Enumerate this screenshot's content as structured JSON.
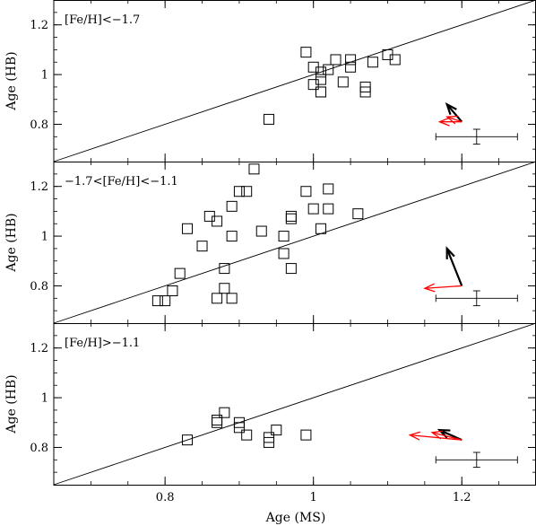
{
  "chart_data": {
    "type": "scatter",
    "x_axis": {
      "label": "Age (MS)",
      "range": [
        0.65,
        1.3
      ],
      "ticks": [
        0.8,
        1,
        1.2
      ],
      "tick_labels": [
        "0.8",
        "1",
        "1.2"
      ]
    },
    "y_axis": {
      "label": "Age (HB)",
      "range": [
        0.65,
        1.3
      ],
      "ticks": [
        0.8,
        1,
        1.2
      ],
      "tick_labels": [
        "0.8",
        "1",
        "1.2"
      ]
    },
    "colors": {
      "black": "#000000",
      "red": "#ff0000"
    },
    "panels": [
      {
        "label": "[Fe/H]<−1.7",
        "points": [
          [
            0.94,
            0.82
          ],
          [
            0.99,
            1.09
          ],
          [
            1.0,
            1.03
          ],
          [
            1.0,
            0.96
          ],
          [
            1.01,
            1.01
          ],
          [
            1.01,
            0.98
          ],
          [
            1.01,
            0.93
          ],
          [
            1.01,
            0.93
          ],
          [
            1.02,
            1.02
          ],
          [
            1.03,
            1.06
          ],
          [
            1.04,
            0.97
          ],
          [
            1.05,
            1.06
          ],
          [
            1.05,
            1.03
          ],
          [
            1.07,
            0.95
          ],
          [
            1.07,
            0.93
          ],
          [
            1.08,
            1.05
          ],
          [
            1.1,
            1.08
          ],
          [
            1.11,
            1.06
          ]
        ],
        "arrows": [
          {
            "color": "black",
            "from": [
              1.2,
              0.81
            ],
            "to": [
              1.18,
              0.88
            ]
          },
          {
            "color": "red",
            "from": [
              1.2,
              0.81
            ],
            "to": [
              1.17,
              0.81
            ]
          },
          {
            "color": "red",
            "from": [
              1.2,
              0.81
            ],
            "to": [
              1.18,
              0.83
            ]
          }
        ],
        "error_bar": {
          "x": 1.22,
          "y": 0.75,
          "x_err": 0.055,
          "y_err": 0.03
        }
      },
      {
        "label": "−1.7<[Fe/H]<−1.1",
        "points": [
          [
            0.79,
            0.74
          ],
          [
            0.8,
            0.74
          ],
          [
            0.81,
            0.78
          ],
          [
            0.82,
            0.85
          ],
          [
            0.83,
            1.03
          ],
          [
            0.85,
            0.96
          ],
          [
            0.86,
            1.08
          ],
          [
            0.87,
            1.06
          ],
          [
            0.87,
            0.75
          ],
          [
            0.88,
            0.87
          ],
          [
            0.88,
            0.79
          ],
          [
            0.89,
            1.12
          ],
          [
            0.89,
            1.0
          ],
          [
            0.89,
            0.75
          ],
          [
            0.9,
            1.18
          ],
          [
            0.91,
            1.18
          ],
          [
            0.92,
            1.27
          ],
          [
            0.93,
            1.02
          ],
          [
            0.96,
            1.0
          ],
          [
            0.96,
            0.93
          ],
          [
            0.97,
            1.07
          ],
          [
            0.97,
            1.08
          ],
          [
            0.97,
            0.87
          ],
          [
            0.99,
            1.18
          ],
          [
            1.0,
            1.11
          ],
          [
            1.01,
            1.03
          ],
          [
            1.02,
            1.19
          ],
          [
            1.02,
            1.11
          ],
          [
            1.06,
            1.09
          ]
        ],
        "arrows": [
          {
            "color": "black",
            "from": [
              1.2,
              0.8
            ],
            "to": [
              1.18,
              0.95
            ]
          },
          {
            "color": "red",
            "from": [
              1.2,
              0.8
            ],
            "to": [
              1.15,
              0.79
            ]
          }
        ],
        "error_bar": {
          "x": 1.22,
          "y": 0.75,
          "x_err": 0.055,
          "y_err": 0.03
        }
      },
      {
        "label": "[Fe/H]>−1.1",
        "points": [
          [
            0.83,
            0.83
          ],
          [
            0.87,
            0.91
          ],
          [
            0.87,
            0.9
          ],
          [
            0.88,
            0.94
          ],
          [
            0.9,
            0.9
          ],
          [
            0.9,
            0.88
          ],
          [
            0.91,
            0.85
          ],
          [
            0.94,
            0.84
          ],
          [
            0.94,
            0.82
          ],
          [
            0.95,
            0.87
          ],
          [
            0.99,
            0.85
          ]
        ],
        "arrows": [
          {
            "color": "black",
            "from": [
              1.2,
              0.83
            ],
            "to": [
              1.17,
              0.87
            ]
          },
          {
            "color": "red",
            "from": [
              1.2,
              0.83
            ],
            "to": [
              1.13,
              0.85
            ]
          },
          {
            "color": "red",
            "from": [
              1.2,
              0.83
            ],
            "to": [
              1.16,
              0.86
            ]
          }
        ],
        "error_bar": {
          "x": 1.22,
          "y": 0.75,
          "x_err": 0.055,
          "y_err": 0.03
        }
      }
    ]
  }
}
